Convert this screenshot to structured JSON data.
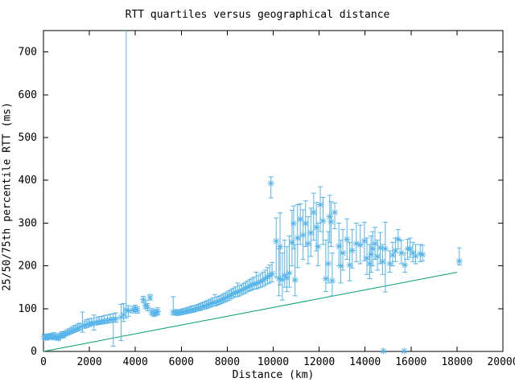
{
  "chart_data": {
    "type": "scatter",
    "title": "RTT quartiles versus geographical distance",
    "xlabel": "Distance (km)",
    "ylabel": "25/50/75th percentile RTT (ms)",
    "xlim": [
      0,
      20000
    ],
    "ylim": [
      0,
      750
    ],
    "xticks": [
      0,
      2000,
      4000,
      6000,
      8000,
      10000,
      12000,
      14000,
      16000,
      18000,
      20000
    ],
    "yticks": [
      0,
      100,
      200,
      300,
      400,
      500,
      600,
      700
    ],
    "grid": false,
    "legend_position": "none",
    "marker": "asterisk",
    "errorbars": "vertical-quartile",
    "colors": {
      "points": "#56B4E9",
      "line": "#009E73",
      "axes": "#000000",
      "background": "#FFFFFF"
    },
    "points_format": [
      "distance_km",
      "q25_ms",
      "q50_ms",
      "q75_ms"
    ],
    "points": [
      [
        30,
        29,
        34,
        40
      ],
      [
        100,
        27,
        31,
        37
      ],
      [
        170,
        30,
        35,
        41
      ],
      [
        240,
        28,
        33,
        39
      ],
      [
        310,
        31,
        36,
        42
      ],
      [
        380,
        29,
        33,
        40
      ],
      [
        450,
        32,
        37,
        44
      ],
      [
        520,
        28,
        32,
        38
      ],
      [
        590,
        30,
        34,
        41
      ],
      [
        660,
        27,
        30,
        36
      ],
      [
        730,
        31,
        36,
        43
      ],
      [
        800,
        33,
        38,
        46
      ],
      [
        870,
        32,
        37,
        45
      ],
      [
        950,
        36,
        41,
        48
      ],
      [
        1040,
        38,
        43,
        51
      ],
      [
        1130,
        40,
        45,
        53
      ],
      [
        1220,
        42,
        47,
        56
      ],
      [
        1310,
        44,
        50,
        59
      ],
      [
        1400,
        46,
        52,
        61
      ],
      [
        1490,
        48,
        54,
        64
      ],
      [
        1580,
        50,
        56,
        66
      ],
      [
        1700,
        45,
        60,
        92
      ],
      [
        1790,
        54,
        61,
        71
      ],
      [
        1890,
        56,
        63,
        74
      ],
      [
        1990,
        58,
        65,
        76
      ],
      [
        2090,
        60,
        66,
        77
      ],
      [
        2200,
        50,
        66,
        85
      ],
      [
        2310,
        62,
        68,
        79
      ],
      [
        2420,
        63,
        69,
        81
      ],
      [
        2530,
        64,
        70,
        82
      ],
      [
        2650,
        65,
        71,
        84
      ],
      [
        2780,
        66,
        72,
        85
      ],
      [
        2910,
        67,
        74,
        87
      ],
      [
        3040,
        12,
        75,
        88
      ],
      [
        3150,
        68,
        76,
        90
      ],
      [
        3380,
        25,
        80,
        110
      ],
      [
        3490,
        70,
        86,
        112
      ],
      [
        3600,
        78,
        97,
        758
      ],
      [
        3700,
        82,
        95,
        107
      ],
      [
        3900,
        90,
        97,
        105
      ],
      [
        4000,
        93,
        100,
        108
      ],
      [
        4090,
        89,
        96,
        104
      ],
      [
        4350,
        114,
        121,
        129
      ],
      [
        4440,
        100,
        108,
        118
      ],
      [
        4530,
        95,
        103,
        112
      ],
      [
        4640,
        120,
        126,
        133
      ],
      [
        4720,
        85,
        92,
        100
      ],
      [
        4810,
        82,
        88,
        96
      ],
      [
        4900,
        84,
        90,
        98
      ],
      [
        4970,
        86,
        93,
        102
      ],
      [
        5650,
        85,
        92,
        128
      ],
      [
        5740,
        86,
        91,
        98
      ],
      [
        5830,
        84,
        90,
        96
      ],
      [
        5920,
        85,
        91,
        97
      ],
      [
        6010,
        86,
        92,
        99
      ],
      [
        6100,
        87,
        93,
        100
      ],
      [
        6190,
        88,
        94,
        101
      ],
      [
        6280,
        89,
        95,
        103
      ],
      [
        6370,
        90,
        96,
        104
      ],
      [
        6460,
        91,
        97,
        106
      ],
      [
        6550,
        92,
        98,
        107
      ],
      [
        6650,
        94,
        100,
        108
      ],
      [
        6740,
        95,
        101,
        110
      ],
      [
        6830,
        96,
        103,
        112
      ],
      [
        6920,
        98,
        105,
        114
      ],
      [
        7010,
        99,
        106,
        116
      ],
      [
        7100,
        100,
        108,
        118
      ],
      [
        7190,
        102,
        110,
        120
      ],
      [
        7280,
        104,
        112,
        122
      ],
      [
        7370,
        106,
        114,
        125
      ],
      [
        7460,
        106,
        114,
        133
      ],
      [
        7550,
        108,
        116,
        127
      ],
      [
        7640,
        110,
        118,
        129
      ],
      [
        7730,
        112,
        120,
        131
      ],
      [
        7820,
        114,
        122,
        134
      ],
      [
        7910,
        116,
        125,
        136
      ],
      [
        8000,
        118,
        127,
        139
      ],
      [
        8090,
        120,
        130,
        142
      ],
      [
        8180,
        123,
        133,
        145
      ],
      [
        8270,
        126,
        136,
        148
      ],
      [
        8360,
        128,
        138,
        151
      ],
      [
        8450,
        128,
        139,
        160
      ],
      [
        8540,
        130,
        141,
        154
      ],
      [
        8630,
        133,
        143,
        156
      ],
      [
        8720,
        135,
        146,
        159
      ],
      [
        8810,
        137,
        148,
        162
      ],
      [
        8900,
        140,
        151,
        165
      ],
      [
        8990,
        142,
        153,
        168
      ],
      [
        9080,
        144,
        156,
        171
      ],
      [
        9170,
        146,
        158,
        174
      ],
      [
        9260,
        146,
        158,
        185
      ],
      [
        9350,
        148,
        161,
        177
      ],
      [
        9450,
        150,
        163,
        181
      ],
      [
        9550,
        152,
        166,
        185
      ],
      [
        9650,
        155,
        170,
        190
      ],
      [
        9750,
        158,
        174,
        196
      ],
      [
        9850,
        160,
        178,
        202
      ],
      [
        9900,
        359,
        393,
        408
      ],
      [
        9950,
        163,
        182,
        208
      ],
      [
        10130,
        174,
        258,
        312
      ],
      [
        10250,
        130,
        170,
        240
      ],
      [
        10300,
        155,
        245,
        324
      ],
      [
        10400,
        120,
        168,
        230
      ],
      [
        10500,
        150,
        178,
        260
      ],
      [
        10600,
        140,
        172,
        245
      ],
      [
        10700,
        150,
        183,
        270
      ],
      [
        10820,
        200,
        255,
        330
      ],
      [
        10890,
        240,
        299,
        340
      ],
      [
        10950,
        130,
        167,
        250
      ],
      [
        11060,
        196,
        265,
        343
      ],
      [
        11180,
        250,
        309,
        345
      ],
      [
        11300,
        215,
        272,
        331
      ],
      [
        11410,
        245,
        299,
        352
      ],
      [
        11520,
        205,
        252,
        315
      ],
      [
        11640,
        222,
        277,
        335
      ],
      [
        11760,
        260,
        325,
        370
      ],
      [
        11880,
        235,
        290,
        348
      ],
      [
        11950,
        200,
        245,
        300
      ],
      [
        12050,
        280,
        343,
        385
      ],
      [
        12170,
        250,
        305,
        360
      ],
      [
        12290,
        140,
        170,
        260
      ],
      [
        12400,
        160,
        205,
        280
      ],
      [
        12460,
        255,
        315,
        365
      ],
      [
        12520,
        245,
        303,
        350
      ],
      [
        12570,
        130,
        165,
        230
      ],
      [
        12680,
        287,
        325,
        347
      ],
      [
        12860,
        200,
        246,
        300
      ],
      [
        12940,
        160,
        200,
        260
      ],
      [
        13030,
        190,
        230,
        285
      ],
      [
        13210,
        215,
        262,
        310
      ],
      [
        13330,
        165,
        202,
        255
      ],
      [
        13440,
        195,
        236,
        285
      ],
      [
        13620,
        210,
        252,
        300
      ],
      [
        13790,
        205,
        249,
        295
      ],
      [
        13970,
        212,
        258,
        302
      ],
      [
        14080,
        180,
        218,
        265
      ],
      [
        14200,
        170,
        205,
        250
      ],
      [
        14260,
        185,
        227,
        270
      ],
      [
        14330,
        200,
        240,
        280
      ],
      [
        14430,
        215,
        252,
        290
      ],
      [
        14540,
        190,
        222,
        260
      ],
      [
        14660,
        205,
        242,
        278
      ],
      [
        14760,
        180,
        210,
        250
      ],
      [
        14800,
        null,
        1,
        null
      ],
      [
        14880,
        139,
        240,
        302
      ],
      [
        15080,
        185,
        205,
        235
      ],
      [
        15200,
        200,
        225,
        255
      ],
      [
        15320,
        210,
        235,
        265
      ],
      [
        15440,
        240,
        262,
        285
      ],
      [
        15580,
        205,
        230,
        260
      ],
      [
        15700,
        null,
        1,
        null
      ],
      [
        15730,
        185,
        202,
        230
      ],
      [
        15850,
        215,
        240,
        262
      ],
      [
        15960,
        220,
        240,
        265
      ],
      [
        16080,
        210,
        230,
        255
      ],
      [
        16200,
        205,
        223,
        250
      ],
      [
        16400,
        210,
        228,
        250
      ],
      [
        16500,
        212,
        226,
        248
      ],
      [
        18100,
        202,
        211,
        242
      ]
    ],
    "fit_line": {
      "x": [
        0,
        18000
      ],
      "y": [
        0,
        185
      ]
    }
  }
}
